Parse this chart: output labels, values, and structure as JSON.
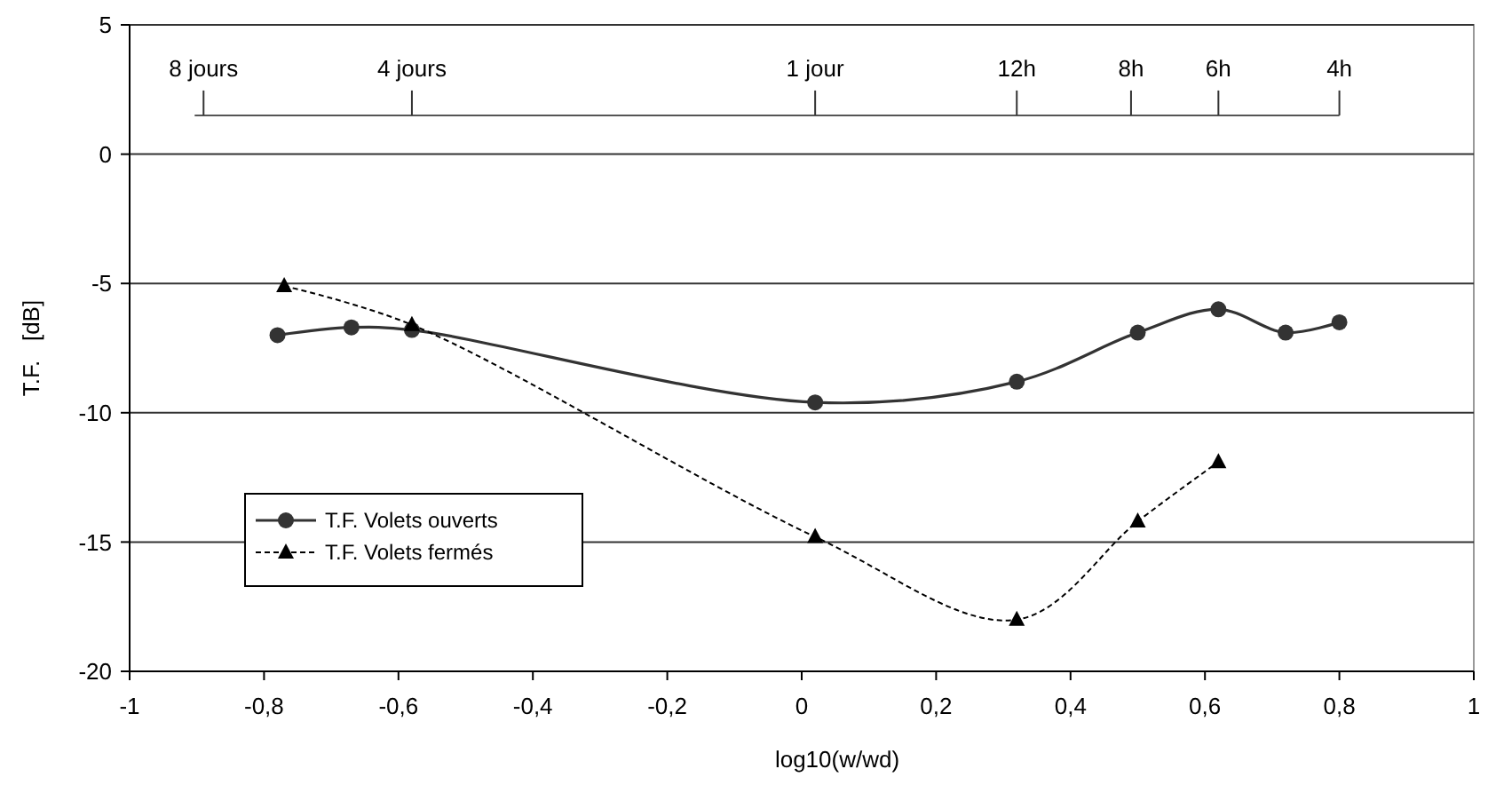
{
  "chart_data": {
    "type": "line",
    "xlabel": "log10(w/wd)",
    "ylabel": "T.F.   [dB]",
    "xlim": [
      -1,
      1
    ],
    "xticks": [
      -1,
      {
        "value": -0.8,
        "label": "-0,8"
      },
      {
        "value": -0.6,
        "label": "-0,6"
      },
      {
        "value": -0.4,
        "label": "-0,4"
      },
      {
        "value": -0.2,
        "label": "-0,2"
      },
      0,
      {
        "value": 0.2,
        "label": "0,2"
      },
      {
        "value": 0.4,
        "label": "0,4"
      },
      {
        "value": 0.6,
        "label": "0,6"
      },
      {
        "value": 0.8,
        "label": "0,8"
      },
      1
    ],
    "ylim": [
      -20,
      5
    ],
    "yticks": [
      -20,
      -15,
      -10,
      -5,
      0,
      5
    ],
    "ref_lines": [
      {
        "axis": "y",
        "value": 1.5,
        "color": "#555555"
      },
      {
        "axis": "x",
        "value": -0.89,
        "label": "8 jours",
        "color": "#333333"
      },
      {
        "axis": "x",
        "value": -0.58,
        "label": "4 jours",
        "color": "#333333"
      },
      {
        "axis": "x",
        "value": 0.02,
        "label": "1 jour",
        "color": "#333333"
      },
      {
        "axis": "x",
        "value": 0.32,
        "label": "12h",
        "color": "#333333"
      },
      {
        "axis": "x",
        "value": 0.49,
        "label": "8h",
        "color": "#333333"
      },
      {
        "axis": "x",
        "value": 0.62,
        "label": "6h",
        "color": "#333333"
      },
      {
        "axis": "x",
        "value": 0.8,
        "label": "4h",
        "color": "#333333"
      }
    ],
    "grid": "y",
    "legend": "bottom left",
    "series": [
      {
        "name": "T.F. Volets ouverts",
        "color": "#333333",
        "marker": "circle",
        "line_style": "solid",
        "x": [
          -0.78,
          -0.67,
          -0.58,
          0.02,
          0.32,
          0.5,
          0.62,
          0.72,
          0.8
        ],
        "values": [
          -7.0,
          -6.7,
          -6.8,
          -9.6,
          -8.8,
          -6.9,
          -6.0,
          -6.9,
          -6.5
        ]
      },
      {
        "name": "T.F. Volets fermés",
        "color": "#000000",
        "marker": "triangle",
        "line_style": "dashed",
        "x": [
          -0.77,
          -0.58,
          0.02,
          0.32,
          0.5,
          0.62
        ],
        "values": [
          -5.1,
          -6.6,
          -14.8,
          -18.0,
          -14.2,
          -11.9
        ]
      }
    ]
  }
}
